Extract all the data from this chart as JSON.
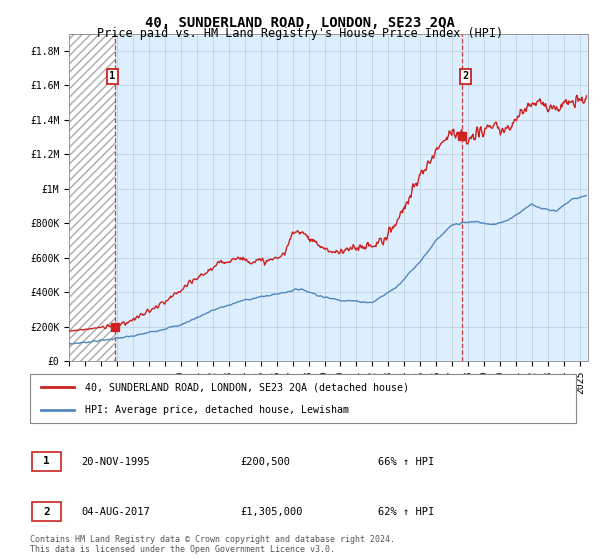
{
  "title": "40, SUNDERLAND ROAD, LONDON, SE23 2QA",
  "subtitle": "Price paid vs. HM Land Registry's House Price Index (HPI)",
  "ylim": [
    0,
    1900000
  ],
  "xlim_start": 1993.0,
  "xlim_end": 2025.5,
  "yticks": [
    0,
    200000,
    400000,
    600000,
    800000,
    1000000,
    1200000,
    1400000,
    1600000,
    1800000
  ],
  "ytick_labels": [
    "£0",
    "£200K",
    "£400K",
    "£600K",
    "£800K",
    "£1M",
    "£1.2M",
    "£1.4M",
    "£1.6M",
    "£1.8M"
  ],
  "xticks": [
    1993,
    1994,
    1995,
    1996,
    1997,
    1998,
    1999,
    2000,
    2001,
    2002,
    2003,
    2004,
    2005,
    2006,
    2007,
    2008,
    2009,
    2010,
    2011,
    2012,
    2013,
    2014,
    2015,
    2016,
    2017,
    2018,
    2019,
    2020,
    2021,
    2022,
    2023,
    2024,
    2025
  ],
  "hpi_color": "#5588bb",
  "price_color": "#cc2222",
  "transaction1_x": 1995.88,
  "transaction1_y": 200500,
  "transaction2_x": 2017.59,
  "transaction2_y": 1305000,
  "vline1_x": 1995.88,
  "vline2_x": 2017.59,
  "legend_line1": "40, SUNDERLAND ROAD, LONDON, SE23 2QA (detached house)",
  "legend_line2": "HPI: Average price, detached house, Lewisham",
  "table_row1_num": "1",
  "table_row1_date": "20-NOV-1995",
  "table_row1_price": "£200,500",
  "table_row1_hpi": "66% ↑ HPI",
  "table_row2_num": "2",
  "table_row2_date": "04-AUG-2017",
  "table_row2_price": "£1,305,000",
  "table_row2_hpi": "62% ↑ HPI",
  "footnote": "Contains HM Land Registry data © Crown copyright and database right 2024.\nThis data is licensed under the Open Government Licence v3.0.",
  "background_color": "#ffffff",
  "plot_bg_right": "#ddeeff",
  "grid_color": "#bbccdd",
  "title_fontsize": 10,
  "subtitle_fontsize": 8.5,
  "tick_fontsize": 7
}
